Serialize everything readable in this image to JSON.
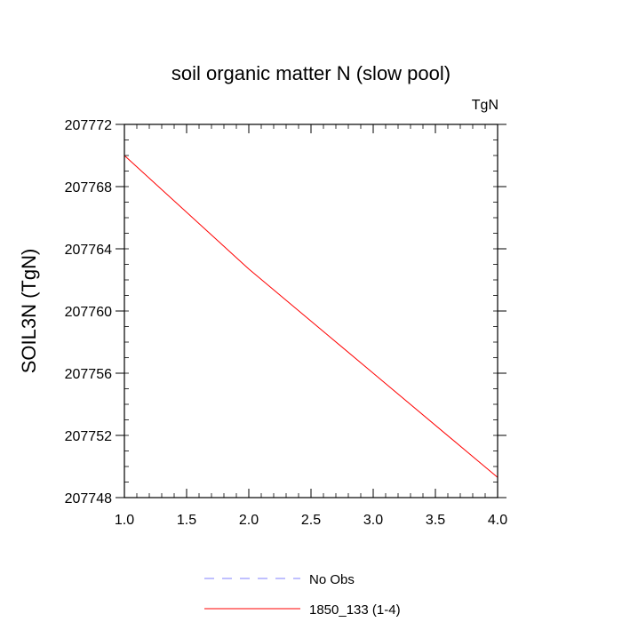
{
  "chart_data": {
    "type": "line",
    "title": "soil organic matter N (slow pool)",
    "units_label": "TgN",
    "xlabel": "",
    "ylabel": "SOIL3N  (TgN)",
    "xlim": [
      1.0,
      4.0
    ],
    "ylim": [
      207748,
      207772
    ],
    "x_ticks": [
      "1.0",
      "1.5",
      "2.0",
      "2.5",
      "3.0",
      "3.5",
      "4.0"
    ],
    "y_ticks": [
      "207748",
      "207752",
      "207756",
      "207760",
      "207764",
      "207768",
      "207772"
    ],
    "grid": false,
    "legend_position": "bottom",
    "series": [
      {
        "name": "No Obs",
        "color": "#8080ff",
        "style": "dashed",
        "x": [],
        "y": []
      },
      {
        "name": "1850_133 (1-4)",
        "color": "#ff0000",
        "style": "solid",
        "x": [
          1.0,
          2.0,
          3.0,
          4.0
        ],
        "y": [
          207770.0,
          207762.7,
          207756.0,
          207749.3
        ]
      }
    ]
  }
}
